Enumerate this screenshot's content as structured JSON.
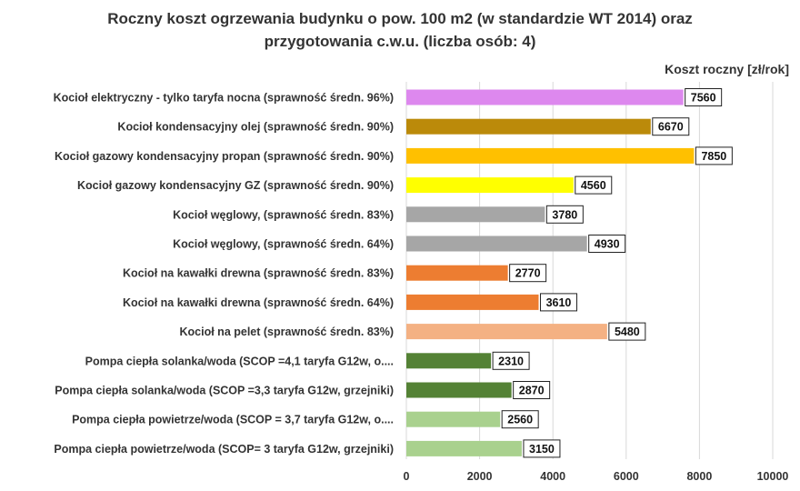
{
  "chart_data": {
    "type": "bar",
    "orientation": "horizontal",
    "title_line1": "Roczny koszt  ogrzewania budynku o pow. 100 m2 (w standardzie  WT 2014) oraz",
    "title_line2": "przygotowania  c.w.u. (liczba osób: 4)",
    "unit_label": "Koszt roczny [zł/rok]",
    "xlim": [
      0,
      10000
    ],
    "xticks": [
      0,
      2000,
      4000,
      6000,
      8000,
      10000
    ],
    "grid": true,
    "categories": [
      "Kocioł  elektryczny - tylko taryfa nocna (sprawność średn. 96%)",
      "Kocioł  kondensacyjny olej (sprawność średn. 90%)",
      "Kocioł gazowy kondensacyjny propan (sprawność średn. 90%)",
      "Kocioł gazowy kondensacyjny GZ (sprawność średn. 90%)",
      "Kocioł węglowy,  (sprawność średn. 83%)",
      "Kocioł węglowy,  (sprawność średn. 64%)",
      "Kocioł na kawałki drewna (sprawność średn. 83%)",
      "Kocioł na kawałki drewna (sprawność średn. 64%)",
      "Kocioł na pelet (sprawność średn. 83%)",
      "Pompa ciepła solanka/woda (SCOP =4,1 taryfa G12w, o....",
      "Pompa ciepła solanka/woda (SCOP =3,3 taryfa G12w, grzejniki)",
      "Pompa ciepła powietrze/woda (SCOP = 3,7 taryfa G12w, o....",
      "Pompa ciepła powietrze/woda (SCOP= 3 taryfa G12w, grzejniki)"
    ],
    "values": [
      7560,
      6670,
      7850,
      4560,
      3780,
      4930,
      2770,
      3610,
      5480,
      2310,
      2870,
      2560,
      3150
    ],
    "value_labels": [
      "7560",
      "6670",
      "7850",
      "4560",
      "3780",
      "4930",
      "2770",
      "3610",
      "5480",
      "2310",
      "2870",
      "2560",
      "3150"
    ],
    "colors": [
      "#dd88ee",
      "#bb8a0a",
      "#ffc000",
      "#ffff00",
      "#a6a6a6",
      "#a6a6a6",
      "#ed7d31",
      "#ed7d31",
      "#f4b183",
      "#548235",
      "#548235",
      "#a9d18e",
      "#a9d18e"
    ]
  }
}
